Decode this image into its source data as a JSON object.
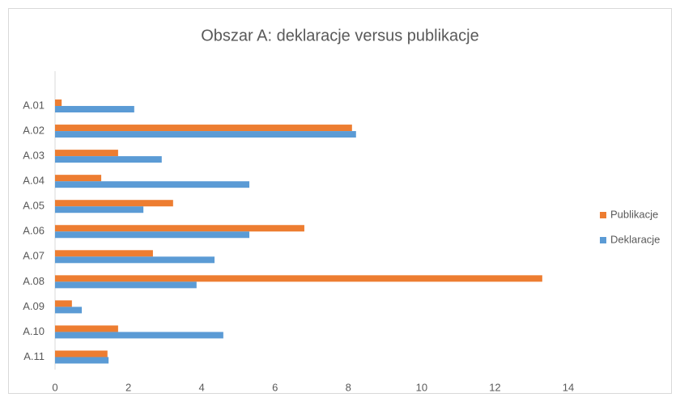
{
  "chart_data": {
    "type": "bar",
    "orientation": "horizontal",
    "title": "Obszar A: deklaracje versus publikacje",
    "categories": [
      "A.01",
      "A.02",
      "A.03",
      "A.04",
      "A.05",
      "A.06",
      "A.07",
      "A.08",
      "A.09",
      "A.10",
      "A.11"
    ],
    "series": [
      {
        "name": "Publikacje",
        "color": "#ed7d31",
        "values": [
          0.18,
          8.1,
          1.72,
          1.26,
          3.22,
          6.8,
          2.67,
          13.29,
          0.46,
          1.72,
          1.43
        ]
      },
      {
        "name": "Deklaracje",
        "color": "#5b9bd5",
        "values": [
          2.16,
          8.21,
          2.91,
          5.3,
          2.41,
          5.3,
          4.35,
          3.86,
          0.73,
          4.59,
          1.46
        ]
      }
    ],
    "xlim": [
      0,
      14
    ],
    "xticks": [
      0,
      2,
      4,
      6,
      8,
      10,
      12,
      14
    ],
    "grid": false,
    "legend": "right"
  }
}
